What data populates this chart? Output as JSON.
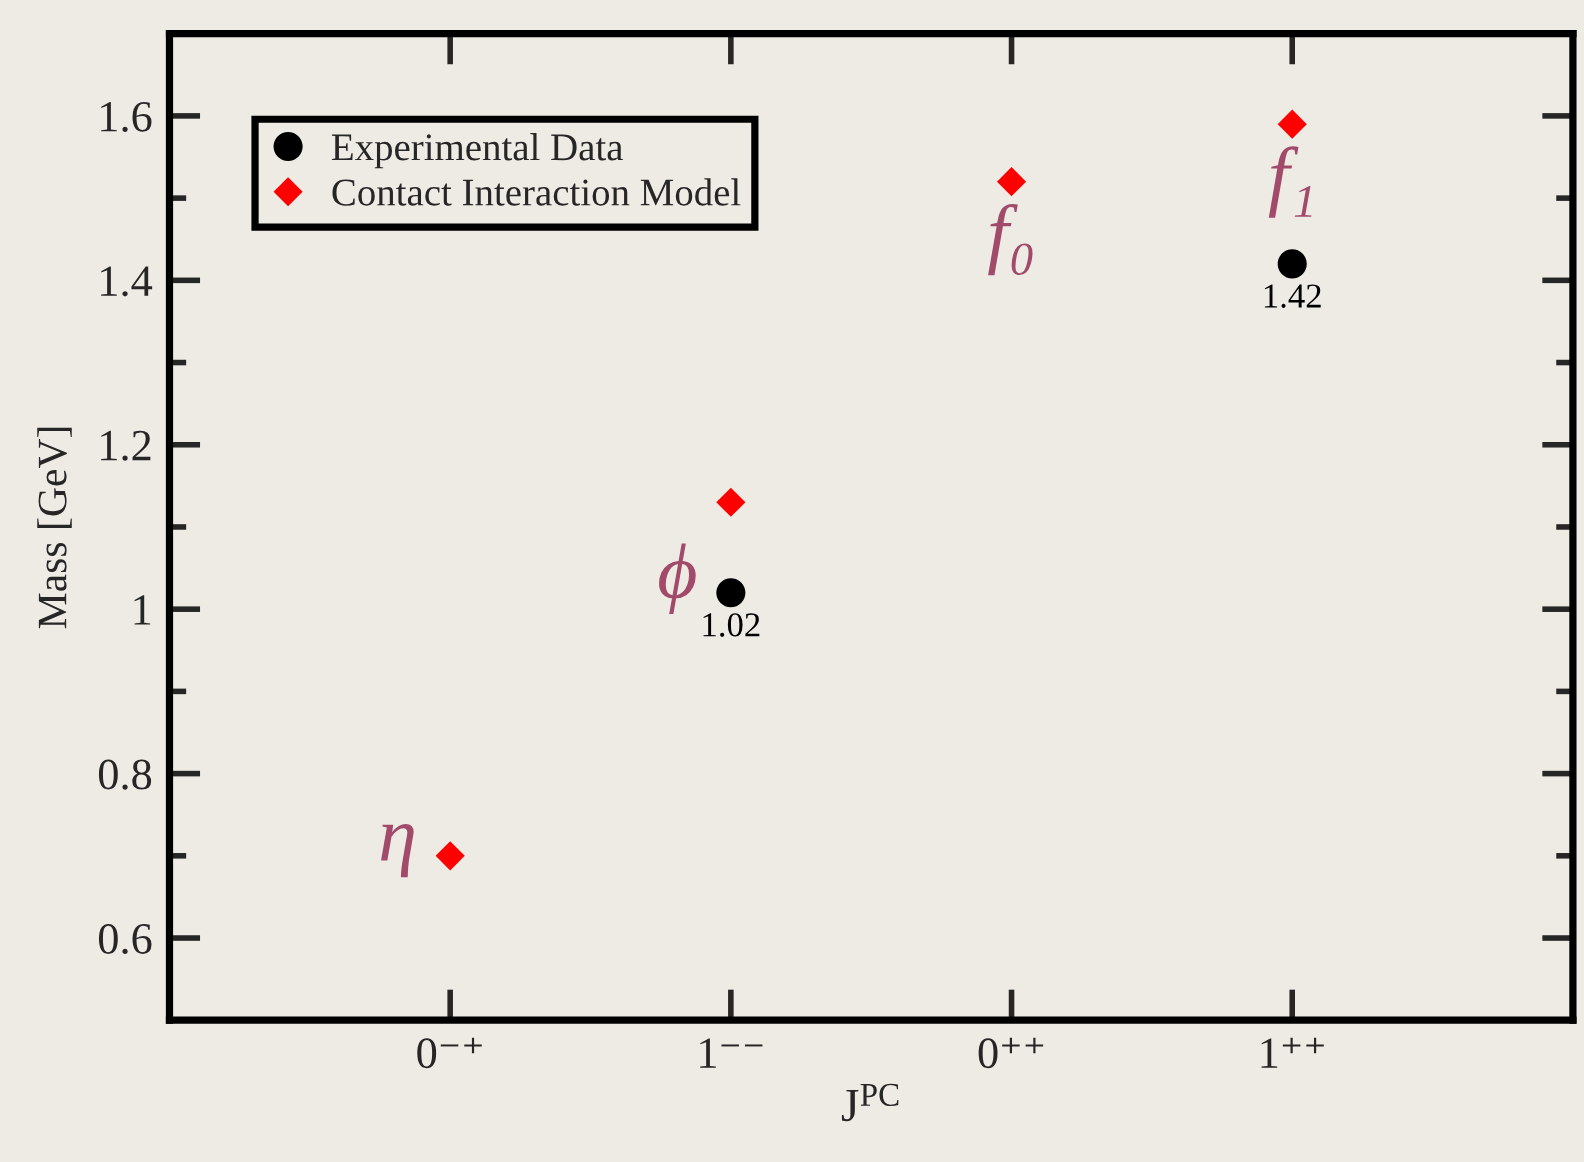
{
  "chart_data": {
    "type": "scatter",
    "categories": [
      "0⁻⁺",
      "1⁻⁻",
      "0⁺⁺",
      "1⁺⁺"
    ],
    "xlabel": "J$^{PC}$",
    "ylabel": "Mass [GeV]",
    "ylim": [
      0.5,
      1.7
    ],
    "yticks": [
      0.6,
      {
        "value": 0.7,
        "label": null
      },
      0.8,
      {
        "value": 0.9,
        "label": null
      },
      1,
      {
        "value": 1.1,
        "label": null
      },
      1.2,
      {
        "value": 1.3,
        "label": null
      },
      1.4,
      {
        "value": 1.5,
        "label": null
      },
      1.6
    ],
    "series": [
      {
        "name": "Experimental Data",
        "color": "#000000",
        "marker": "circle",
        "values": [
          null,
          1.02,
          null,
          1.42
        ],
        "value_labels": [
          null,
          "1.02",
          null,
          "1.42"
        ]
      },
      {
        "name": "Contact Interaction Model",
        "color": "#ff0000",
        "marker": "diamond",
        "values": [
          0.7,
          1.13,
          1.52,
          1.59
        ]
      }
    ],
    "annotations": [
      {
        "text": "η",
        "x": "0⁻⁺",
        "y": 0.7
      },
      {
        "text": "ϕ",
        "x": "1⁻⁻",
        "y": 1.02
      },
      {
        "text": "f₀",
        "x": "0⁺⁺",
        "y": 1.52
      },
      {
        "text": "f₁",
        "x": "1⁺⁺",
        "y": 1.59
      }
    ],
    "legend": "top left"
  }
}
